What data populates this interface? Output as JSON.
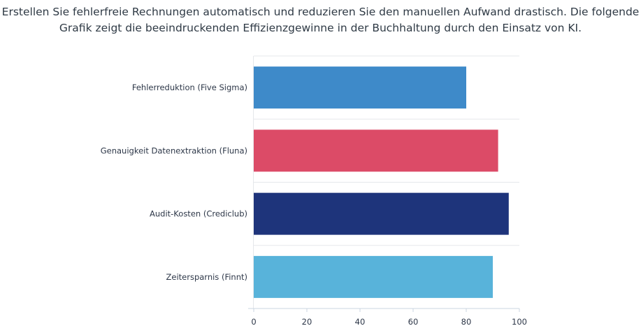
{
  "intro": {
    "line1": "Erstellen Sie fehlerfreie Rechnungen automatisch und reduzieren Sie den manuellen Aufwand drastisch. Die folgende",
    "line2": "Grafik zeigt die beeindruckenden Effizienzgewinne in der Buchhaltung durch den Einsatz von KI."
  },
  "chart_data": {
    "type": "bar",
    "orientation": "horizontal",
    "categories": [
      "Fehlerreduktion (Five Sigma)",
      "Genauigkeit Datenextraktion (Fluna)",
      "Audit-Kosten (Crediclub)",
      "Zeitersparnis (Finnt)"
    ],
    "values": [
      80,
      92,
      96,
      90
    ],
    "colors": [
      "#3e8ac9",
      "#dc4b67",
      "#1e347b",
      "#58b3da"
    ],
    "xlim": [
      0,
      100
    ],
    "xticks": [
      0,
      20,
      40,
      60,
      80,
      100
    ],
    "grid": "horizontal separators",
    "legend": "none"
  }
}
